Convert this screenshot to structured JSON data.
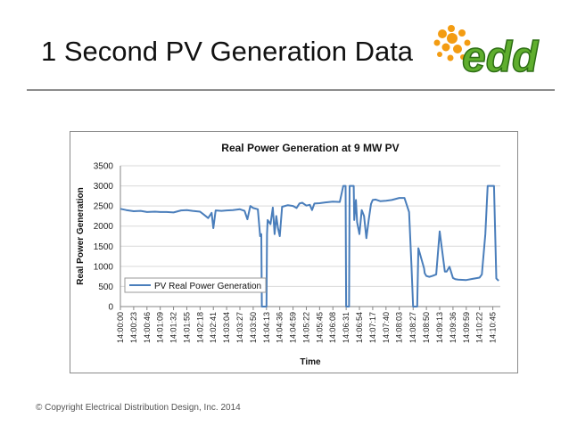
{
  "slide": {
    "title": "1 Second PV Generation Data",
    "footer": "© Copyright Electrical Distribution Design, Inc. 2014",
    "logo_text": "edd"
  },
  "colors": {
    "series": "#4a7ebb",
    "grid": "#d9d9d9",
    "logo_green": "#5fae2e",
    "logo_orange": "#f39c12"
  },
  "chart_data": {
    "type": "line",
    "title": "Real Power Generation at 9 MW PV",
    "xlabel": "Time",
    "ylabel": "Real Power Generation",
    "ylim": [
      0,
      3500
    ],
    "yticks": [
      0,
      500,
      1000,
      1500,
      2000,
      2500,
      3000,
      3500
    ],
    "xticks": [
      "14:00:00",
      "14:00:23",
      "14:00:46",
      "14:01:09",
      "14:01:32",
      "14:01:55",
      "14:02:18",
      "14:02:41",
      "14:03:04",
      "14:03:27",
      "14:03:50",
      "14:04:13",
      "14:04:36",
      "14:04:59",
      "14:05:22",
      "14:05:45",
      "14:06:08",
      "14:06:31",
      "14:06:54",
      "14:07:17",
      "14:07:40",
      "14:08:03",
      "14:08:27",
      "14:08:50",
      "14:09:13",
      "14:09:36",
      "14:09:59",
      "14:10:22",
      "14:10:45"
    ],
    "grid": "horizontal",
    "legend_position": "lower-left",
    "series": [
      {
        "name": "PV Real Power Generation",
        "x": [
          "14:00:00",
          "14:00:10",
          "14:00:23",
          "14:00:35",
          "14:00:46",
          "14:01:00",
          "14:01:09",
          "14:01:20",
          "14:01:32",
          "14:01:45",
          "14:01:55",
          "14:02:05",
          "14:02:18",
          "14:02:25",
          "14:02:32",
          "14:02:38",
          "14:02:41",
          "14:02:45",
          "14:02:55",
          "14:03:04",
          "14:03:15",
          "14:03:27",
          "14:03:35",
          "14:03:40",
          "14:03:45",
          "14:03:50",
          "14:03:58",
          "14:04:02",
          "14:04:04",
          "14:04:05",
          "14:04:06",
          "14:04:13",
          "14:04:14",
          "14:04:15",
          "14:04:20",
          "14:04:24",
          "14:04:27",
          "14:04:30",
          "14:04:33",
          "14:04:36",
          "14:04:40",
          "14:04:45",
          "14:04:50",
          "14:04:59",
          "14:05:05",
          "14:05:10",
          "14:05:15",
          "14:05:22",
          "14:05:28",
          "14:05:32",
          "14:05:36",
          "14:05:45",
          "14:05:55",
          "14:06:08",
          "14:06:20",
          "14:06:26",
          "14:06:28",
          "14:06:30",
          "14:06:31",
          "14:06:34",
          "14:06:36",
          "14:06:37",
          "14:06:40",
          "14:06:44",
          "14:06:45",
          "14:06:48",
          "14:06:50",
          "14:06:54",
          "14:06:58",
          "14:07:02",
          "14:07:06",
          "14:07:10",
          "14:07:14",
          "14:07:17",
          "14:07:22",
          "14:07:30",
          "14:07:40",
          "14:07:50",
          "14:08:03",
          "14:08:12",
          "14:08:20",
          "14:08:24",
          "14:08:27",
          "14:08:30",
          "14:08:34",
          "14:08:36",
          "14:08:46",
          "14:08:47",
          "14:08:50",
          "14:08:55",
          "14:09:00",
          "14:09:07",
          "14:09:13",
          "14:09:22",
          "14:09:25",
          "14:09:30",
          "14:09:36",
          "14:09:40",
          "14:09:45",
          "14:09:59",
          "14:10:10",
          "14:10:22",
          "14:10:26",
          "14:10:32",
          "14:10:36",
          "14:10:38",
          "14:10:45",
          "14:10:47",
          "14:10:51",
          "14:10:55"
        ],
        "y": [
          2430,
          2400,
          2370,
          2380,
          2350,
          2360,
          2350,
          2350,
          2340,
          2390,
          2400,
          2380,
          2360,
          2280,
          2200,
          2330,
          1950,
          2390,
          2380,
          2390,
          2400,
          2420,
          2380,
          2170,
          2500,
          2450,
          2420,
          1750,
          1800,
          0,
          0,
          0,
          1800,
          2150,
          2050,
          2460,
          1800,
          2250,
          1950,
          1750,
          2480,
          2500,
          2520,
          2500,
          2450,
          2560,
          2580,
          2510,
          2530,
          2400,
          2560,
          2570,
          2590,
          2610,
          2600,
          3000,
          3000,
          3000,
          0,
          0,
          0,
          3000,
          3000,
          3000,
          2150,
          2650,
          2100,
          1800,
          2400,
          2250,
          1700,
          2150,
          2550,
          2650,
          2660,
          2620,
          2630,
          2650,
          2700,
          2700,
          2350,
          1050,
          0,
          0,
          0,
          1450,
          950,
          830,
          760,
          740,
          760,
          800,
          1870,
          870,
          870,
          990,
          710,
          680,
          670,
          660,
          690,
          720,
          800,
          1800,
          3000,
          3000,
          3000,
          3000,
          700,
          640
        ]
      }
    ]
  }
}
